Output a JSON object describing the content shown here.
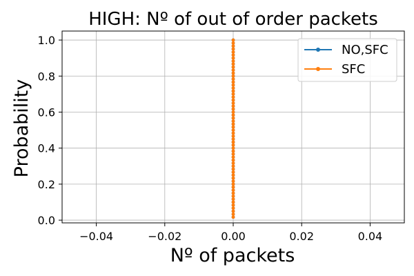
{
  "chart_data": {
    "type": "line",
    "title": "HIGH: Nº of out of order packets",
    "xlabel": "Nº of packets",
    "ylabel": "Probability",
    "xlim": [
      -0.05,
      0.05
    ],
    "ylim": [
      -0.015,
      1.05
    ],
    "xticks": [
      -0.04,
      -0.02,
      0.0,
      0.02,
      0.04
    ],
    "xtick_labels": [
      "−0.04",
      "−0.02",
      "0.00",
      "0.02",
      "0.04"
    ],
    "yticks": [
      0.0,
      0.2,
      0.4,
      0.6,
      0.8,
      1.0
    ],
    "ytick_labels": [
      "0.0",
      "0.2",
      "0.4",
      "0.6",
      "0.8",
      "1.0"
    ],
    "grid": true,
    "legend_position": "upper right",
    "series": [
      {
        "name": "NO,SFC",
        "color": "#1f77b4",
        "marker": "circle",
        "x": [
          0,
          0,
          0,
          0,
          0,
          0,
          0,
          0,
          0,
          0,
          0,
          0,
          0,
          0,
          0,
          0,
          0,
          0,
          0,
          0,
          0,
          0,
          0,
          0,
          0,
          0,
          0,
          0,
          0,
          0,
          0,
          0,
          0,
          0,
          0,
          0,
          0,
          0,
          0,
          0,
          0,
          0,
          0,
          0,
          0,
          0,
          0,
          0,
          0,
          0,
          0,
          0,
          0,
          0,
          0,
          0,
          0,
          0,
          0,
          0
        ],
        "y": [
          0.0167,
          0.0333,
          0.05,
          0.0667,
          0.0833,
          0.1,
          0.1167,
          0.1333,
          0.15,
          0.1667,
          0.1833,
          0.2,
          0.2167,
          0.2333,
          0.25,
          0.2667,
          0.2833,
          0.3,
          0.3167,
          0.3333,
          0.35,
          0.3667,
          0.3833,
          0.4,
          0.4167,
          0.4333,
          0.45,
          0.4667,
          0.4833,
          0.5,
          0.5167,
          0.5333,
          0.55,
          0.5667,
          0.5833,
          0.6,
          0.6167,
          0.6333,
          0.65,
          0.6667,
          0.6833,
          0.7,
          0.7167,
          0.7333,
          0.75,
          0.7667,
          0.7833,
          0.8,
          0.8167,
          0.8333,
          0.85,
          0.8667,
          0.8833,
          0.9,
          0.9167,
          0.9333,
          0.95,
          0.9667,
          0.9833,
          1.0
        ]
      },
      {
        "name": "SFC",
        "color": "#ff7f0e",
        "marker": "circle",
        "x": [
          0,
          0,
          0,
          0,
          0,
          0,
          0,
          0,
          0,
          0,
          0,
          0,
          0,
          0,
          0,
          0,
          0,
          0,
          0,
          0,
          0,
          0,
          0,
          0,
          0,
          0,
          0,
          0,
          0,
          0,
          0,
          0,
          0,
          0,
          0,
          0,
          0,
          0,
          0,
          0,
          0,
          0,
          0,
          0,
          0,
          0,
          0,
          0,
          0,
          0,
          0,
          0,
          0,
          0,
          0,
          0,
          0,
          0,
          0,
          0
        ],
        "y": [
          0.0167,
          0.0333,
          0.05,
          0.0667,
          0.0833,
          0.1,
          0.1167,
          0.1333,
          0.15,
          0.1667,
          0.1833,
          0.2,
          0.2167,
          0.2333,
          0.25,
          0.2667,
          0.2833,
          0.3,
          0.3167,
          0.3333,
          0.35,
          0.3667,
          0.3833,
          0.4,
          0.4167,
          0.4333,
          0.45,
          0.4667,
          0.4833,
          0.5,
          0.5167,
          0.5333,
          0.55,
          0.5667,
          0.5833,
          0.6,
          0.6167,
          0.6333,
          0.65,
          0.6667,
          0.6833,
          0.7,
          0.7167,
          0.7333,
          0.75,
          0.7667,
          0.7833,
          0.8,
          0.8167,
          0.8333,
          0.85,
          0.8667,
          0.8833,
          0.9,
          0.9167,
          0.9333,
          0.95,
          0.9667,
          0.9833,
          1.0
        ]
      }
    ]
  }
}
